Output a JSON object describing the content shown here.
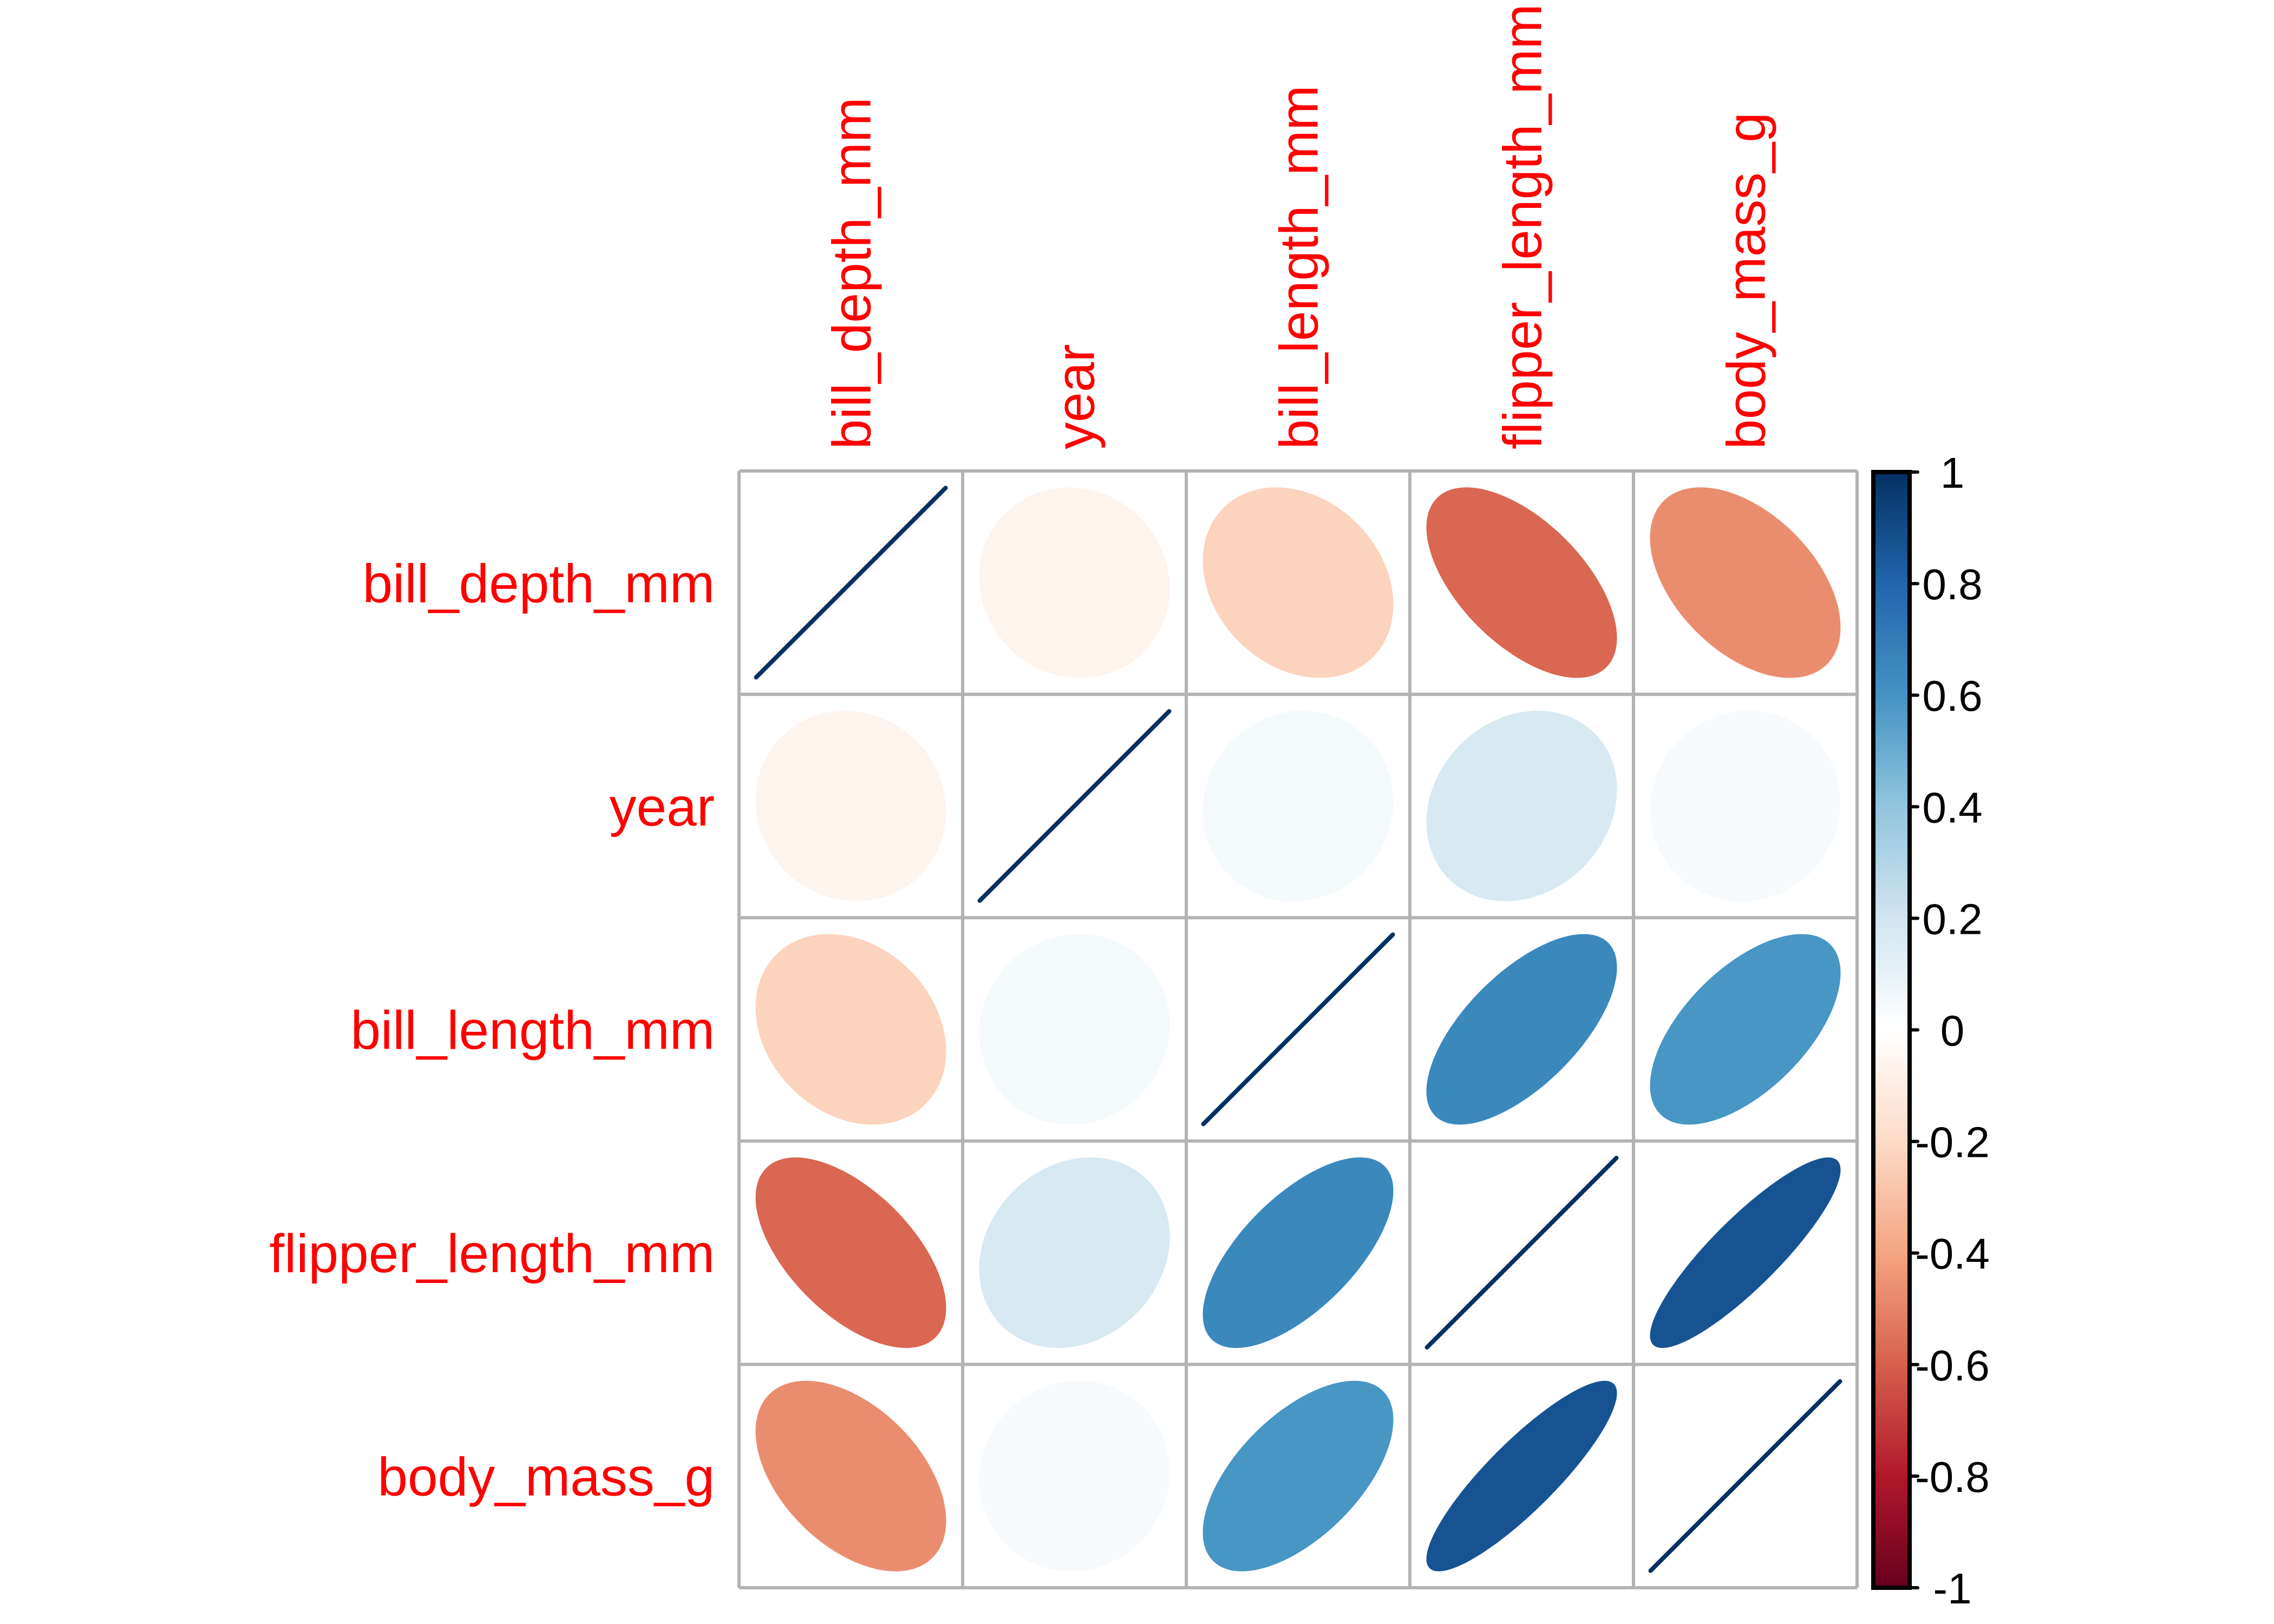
{
  "chart_data": {
    "type": "heatmap",
    "subtype": "correlation-ellipse",
    "title": "",
    "variables": [
      "bill_depth_mm",
      "year",
      "bill_length_mm",
      "flipper_length_mm",
      "body_mass_g"
    ],
    "row_labels": [
      "bill_depth_mm",
      "year",
      "bill_length_mm",
      "flipper_length_mm",
      "body_mass_g"
    ],
    "col_labels": [
      "bill_depth_mm",
      "year",
      "bill_length_mm",
      "flipper_length_mm",
      "body_mass_g"
    ],
    "matrix": [
      [
        1.0,
        -0.06,
        -0.23,
        -0.58,
        -0.47
      ],
      [
        -0.06,
        1.0,
        0.05,
        0.17,
        0.04
      ],
      [
        -0.23,
        0.05,
        1.0,
        0.65,
        0.59
      ],
      [
        -0.58,
        0.17,
        0.65,
        1.0,
        0.87
      ],
      [
        -0.47,
        0.04,
        0.59,
        0.87,
        1.0
      ]
    ],
    "label_color": "#FF0000",
    "grid_color": "#B3B3B3",
    "colorbar": {
      "range": [
        -1,
        1
      ],
      "ticks": [
        1,
        0.8,
        0.6,
        0.4,
        0.2,
        0,
        -0.2,
        -0.4,
        -0.6,
        -0.8,
        -1
      ],
      "tick_labels": [
        "1",
        "0.8",
        "0.6",
        "0.4",
        "0.2",
        "0",
        "-0.2",
        "-0.4",
        "-0.6",
        "-0.8",
        "-1"
      ],
      "palette": [
        "#67001F",
        "#B2182B",
        "#D6604D",
        "#F4A582",
        "#FDDBC7",
        "#FFFFFF",
        "#D1E5F0",
        "#92C5DE",
        "#4393C3",
        "#2166AC",
        "#053061"
      ],
      "placement": "right"
    },
    "legend": "colorbar-right",
    "grid": true
  }
}
